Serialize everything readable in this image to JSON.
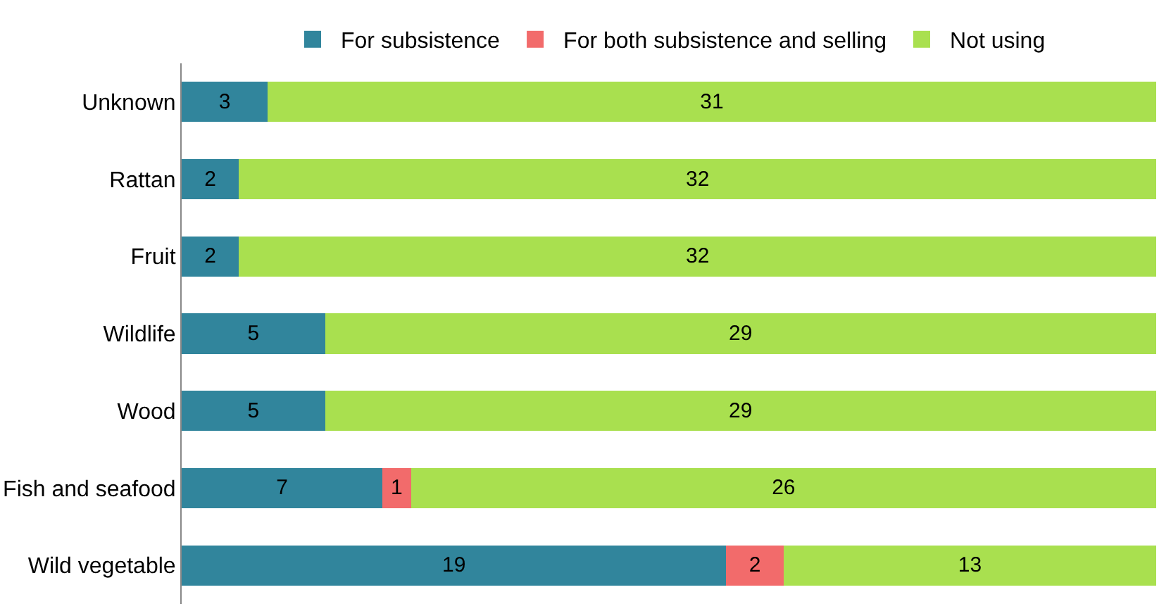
{
  "chart_data": {
    "type": "bar",
    "orientation": "horizontal",
    "stacked": true,
    "data_labels": true,
    "legend": "top",
    "tick_labels": "y",
    "categories": [
      "Unknown",
      "Rattan",
      "Fruit",
      "Wildlife",
      "Wood",
      "Fish and seafood",
      "Wild vegetable"
    ],
    "xlim": [
      0,
      34
    ],
    "series": [
      {
        "name": "For subsistence",
        "color": "#31859c",
        "values": [
          3,
          2,
          2,
          5,
          5,
          7,
          19
        ]
      },
      {
        "name": "For both subsistence and selling",
        "color": "#f26b6b",
        "values": [
          null,
          null,
          null,
          null,
          null,
          1,
          2
        ]
      },
      {
        "name": "Not using",
        "color": "#a9e04f",
        "values": [
          31,
          32,
          32,
          29,
          29,
          26,
          13
        ]
      }
    ]
  }
}
